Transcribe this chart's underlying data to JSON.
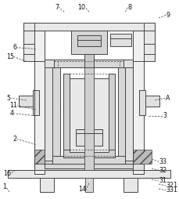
{
  "bg_color": "#ffffff",
  "lc": "#444444",
  "figsize": [
    2.3,
    2.54
  ],
  "dpi": 100,
  "labels": [
    [
      "1",
      12,
      246,
      8,
      240,
      "right"
    ],
    [
      "2",
      46,
      185,
      22,
      178,
      "right"
    ],
    [
      "3",
      192,
      148,
      210,
      148,
      "left"
    ],
    [
      "4",
      46,
      148,
      18,
      145,
      "right"
    ],
    [
      "5",
      34,
      128,
      14,
      125,
      "right"
    ],
    [
      "6",
      46,
      62,
      22,
      60,
      "right"
    ],
    [
      "7",
      83,
      14,
      76,
      8,
      "right"
    ],
    [
      "8",
      162,
      14,
      165,
      8,
      "left"
    ],
    [
      "9",
      205,
      22,
      215,
      18,
      "left"
    ],
    [
      "10",
      115,
      14,
      110,
      8,
      "right"
    ],
    [
      "11",
      46,
      140,
      22,
      135,
      "right"
    ],
    [
      "14",
      115,
      235,
      111,
      243,
      "right"
    ],
    [
      "15",
      34,
      78,
      18,
      72,
      "right"
    ],
    [
      "16",
      20,
      218,
      14,
      222,
      "right"
    ],
    [
      "A",
      200,
      128,
      214,
      125,
      "left"
    ],
    [
      "31",
      196,
      230,
      205,
      232,
      "left"
    ],
    [
      "32",
      196,
      216,
      205,
      218,
      "left"
    ],
    [
      "33",
      196,
      204,
      205,
      207,
      "left"
    ],
    [
      "321",
      205,
      236,
      214,
      238,
      "left"
    ],
    [
      "331",
      205,
      242,
      214,
      244,
      "left"
    ]
  ]
}
